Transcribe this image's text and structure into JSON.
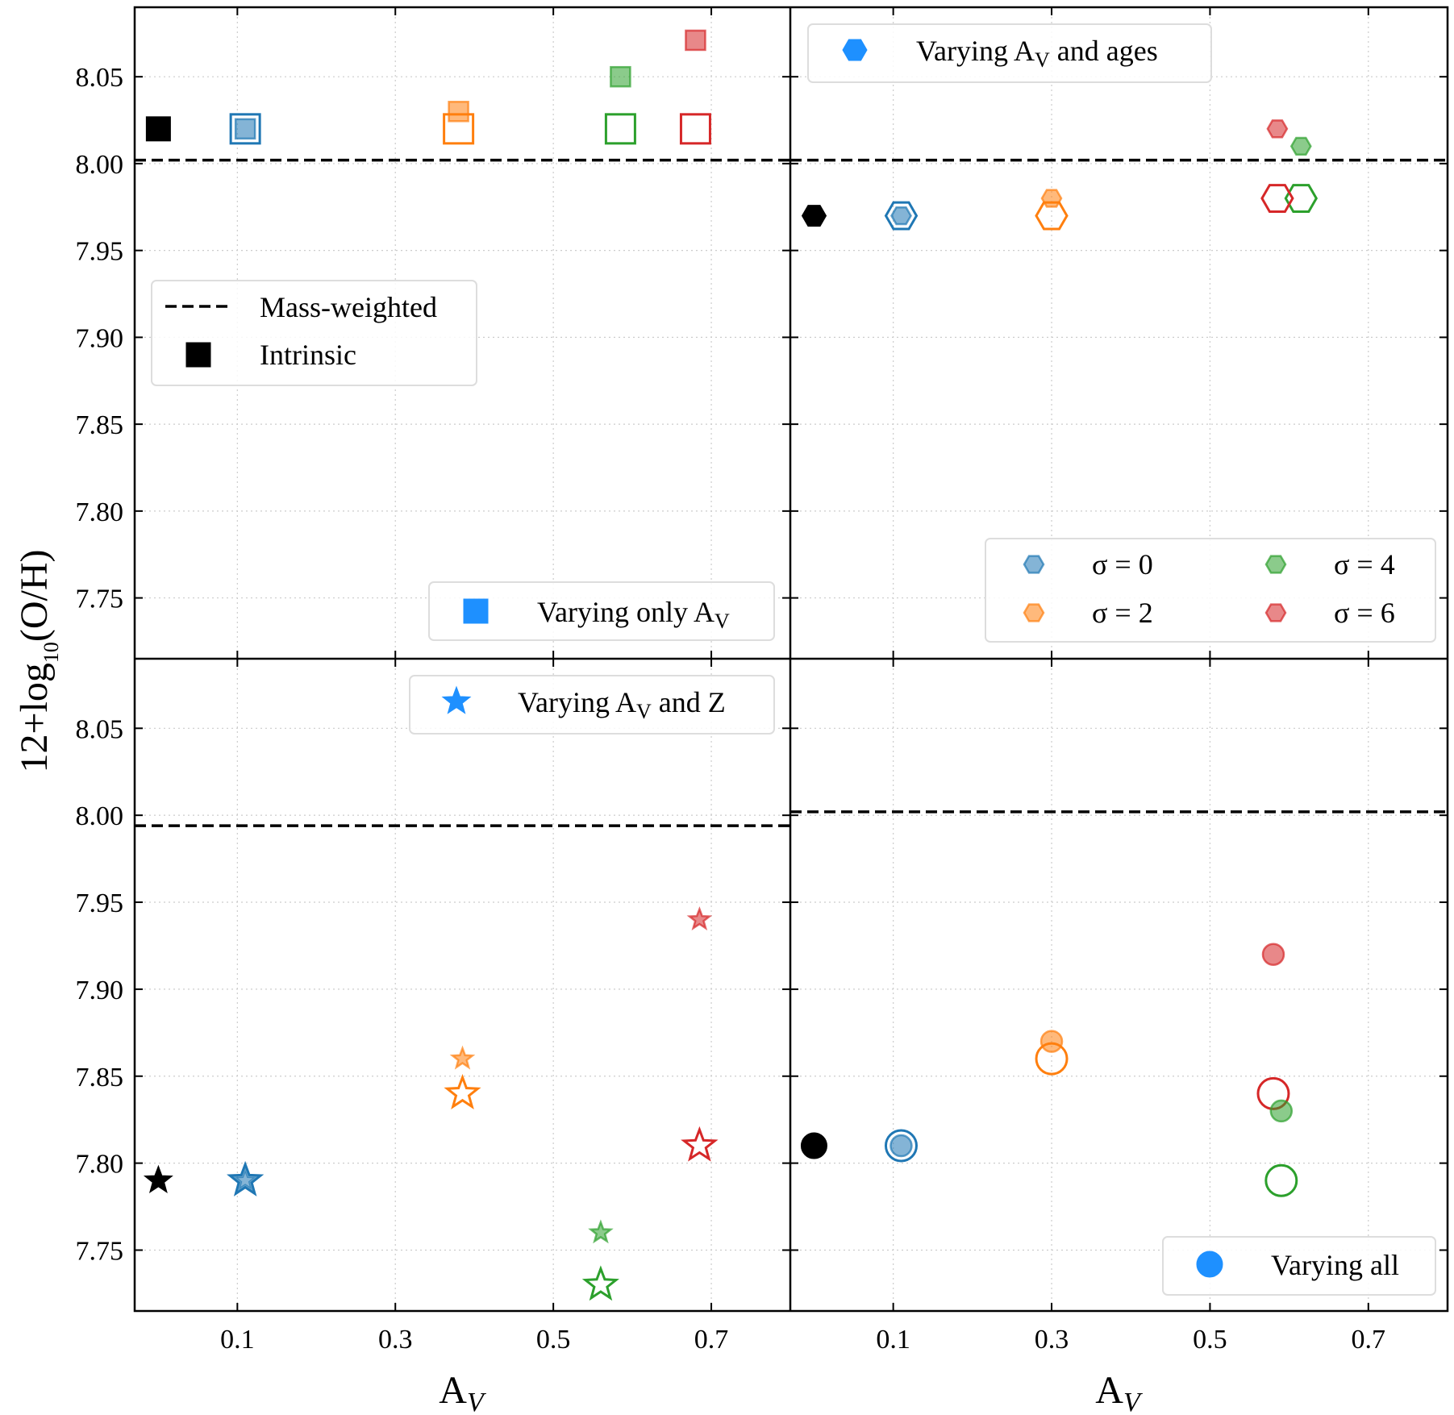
{
  "chart_data": {
    "type": "scatter",
    "ylabel_parts": {
      "pre": "12+log",
      "sub": "10",
      "post": "(O/H)"
    },
    "xlabel_parts": {
      "main": "A",
      "sub": "V"
    },
    "xticks": [
      0.1,
      0.3,
      0.5,
      0.7
    ],
    "xtick_labels": [
      "0.1",
      "0.3",
      "0.5",
      "0.7"
    ],
    "yticks": [
      7.75,
      7.8,
      7.85,
      7.9,
      7.95,
      8.0,
      8.05
    ],
    "ytick_labels": [
      "7.75",
      "7.80",
      "7.85",
      "7.90",
      "7.95",
      "8.00",
      "8.05"
    ],
    "xlim": [
      -0.03,
      0.8
    ],
    "ylim": [
      7.715,
      8.09
    ],
    "colors": {
      "black": "#000000",
      "blue": "#1f77b4",
      "orange": "#ff7f0e",
      "green": "#2ca02c",
      "red": "#d62728",
      "legend_blue": "#1e90ff",
      "grid": "#cccccc"
    },
    "panels": [
      {
        "id": "top-left",
        "marker": "square",
        "mass_weighted": 8.002,
        "legend_main": {
          "text": "Varying only A",
          "sub": "V",
          "rest": ""
        },
        "legend_lines": {
          "mass": "Mass-weighted",
          "intrinsic": "Intrinsic"
        },
        "points": [
          {
            "x": 0.0,
            "y": 8.02,
            "color": "black",
            "style": "solid"
          },
          {
            "x": 0.11,
            "y": 8.02,
            "color": "blue",
            "style": "open"
          },
          {
            "x": 0.11,
            "y": 8.02,
            "color": "blue",
            "style": "faint"
          },
          {
            "x": 0.38,
            "y": 8.02,
            "color": "orange",
            "style": "open"
          },
          {
            "x": 0.38,
            "y": 8.03,
            "color": "orange",
            "style": "faint"
          },
          {
            "x": 0.585,
            "y": 8.02,
            "color": "green",
            "style": "open"
          },
          {
            "x": 0.585,
            "y": 8.05,
            "color": "green",
            "style": "faint"
          },
          {
            "x": 0.68,
            "y": 8.02,
            "color": "red",
            "style": "open"
          },
          {
            "x": 0.68,
            "y": 8.071,
            "color": "red",
            "style": "faint"
          }
        ]
      },
      {
        "id": "top-right",
        "marker": "hexagon",
        "mass_weighted": 8.002,
        "legend_main": {
          "text": "Varying A",
          "sub": "V",
          "rest": " and ages"
        },
        "sigma_legend": [
          {
            "label": "σ = 0",
            "color": "blue"
          },
          {
            "label": "σ = 4",
            "color": "green"
          },
          {
            "label": "σ = 2",
            "color": "orange"
          },
          {
            "label": "σ = 6",
            "color": "red"
          }
        ],
        "points": [
          {
            "x": 0.0,
            "y": 7.97,
            "color": "black",
            "style": "solid"
          },
          {
            "x": 0.11,
            "y": 7.97,
            "color": "blue",
            "style": "open"
          },
          {
            "x": 0.11,
            "y": 7.97,
            "color": "blue",
            "style": "faint"
          },
          {
            "x": 0.3,
            "y": 7.97,
            "color": "orange",
            "style": "open"
          },
          {
            "x": 0.3,
            "y": 7.98,
            "color": "orange",
            "style": "faint"
          },
          {
            "x": 0.615,
            "y": 7.98,
            "color": "green",
            "style": "open"
          },
          {
            "x": 0.615,
            "y": 8.01,
            "color": "green",
            "style": "faint"
          },
          {
            "x": 0.585,
            "y": 7.98,
            "color": "red",
            "style": "open"
          },
          {
            "x": 0.585,
            "y": 8.02,
            "color": "red",
            "style": "faint"
          }
        ]
      },
      {
        "id": "bottom-left",
        "marker": "star",
        "mass_weighted": 7.994,
        "legend_main": {
          "text": "Varying A",
          "sub": "V",
          "rest": " and Z"
        },
        "points": [
          {
            "x": 0.0,
            "y": 7.79,
            "color": "black",
            "style": "solid"
          },
          {
            "x": 0.11,
            "y": 7.79,
            "color": "blue",
            "style": "open"
          },
          {
            "x": 0.11,
            "y": 7.79,
            "color": "blue",
            "style": "faint"
          },
          {
            "x": 0.385,
            "y": 7.84,
            "color": "orange",
            "style": "open"
          },
          {
            "x": 0.385,
            "y": 7.86,
            "color": "orange",
            "style": "faint"
          },
          {
            "x": 0.56,
            "y": 7.73,
            "color": "green",
            "style": "open"
          },
          {
            "x": 0.56,
            "y": 7.76,
            "color": "green",
            "style": "faint"
          },
          {
            "x": 0.685,
            "y": 7.81,
            "color": "red",
            "style": "open"
          },
          {
            "x": 0.685,
            "y": 7.94,
            "color": "red",
            "style": "faint"
          }
        ]
      },
      {
        "id": "bottom-right",
        "marker": "circle",
        "mass_weighted": 8.002,
        "legend_main": {
          "text": "Varying all",
          "sub": "",
          "rest": ""
        },
        "points": [
          {
            "x": 0.0,
            "y": 7.81,
            "color": "black",
            "style": "solid"
          },
          {
            "x": 0.11,
            "y": 7.81,
            "color": "blue",
            "style": "open"
          },
          {
            "x": 0.11,
            "y": 7.81,
            "color": "blue",
            "style": "faint"
          },
          {
            "x": 0.3,
            "y": 7.86,
            "color": "orange",
            "style": "open"
          },
          {
            "x": 0.3,
            "y": 7.87,
            "color": "orange",
            "style": "faint"
          },
          {
            "x": 0.59,
            "y": 7.79,
            "color": "green",
            "style": "open"
          },
          {
            "x": 0.59,
            "y": 7.83,
            "color": "green",
            "style": "faint"
          },
          {
            "x": 0.58,
            "y": 7.84,
            "color": "red",
            "style": "open"
          },
          {
            "x": 0.58,
            "y": 7.92,
            "color": "red",
            "style": "faint"
          }
        ]
      }
    ]
  }
}
